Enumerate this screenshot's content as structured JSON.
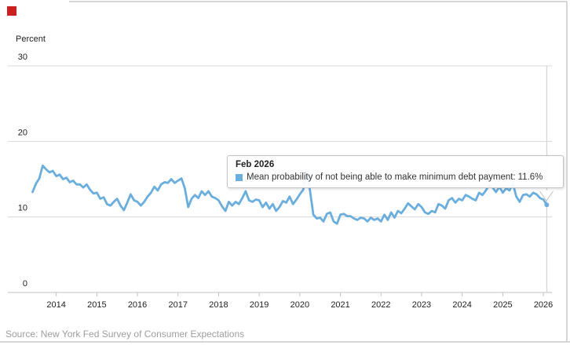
{
  "page": {
    "red_marker_color": "#cc1f1f",
    "source_text": "Source: New York Fed Survey of Consumer Expectations",
    "frame_color": "#c9c9c9"
  },
  "tooltip": {
    "title": "Feb 2026",
    "series_label": "Mean probability of not being able to make minimum debt payment:",
    "value": "11.6%",
    "marker_color": "#6aaede",
    "border_color": "#c3c3c3"
  },
  "chart_data": {
    "type": "line",
    "title": "",
    "ylabel": "Percent",
    "xlabel": "",
    "ylim": [
      0,
      30
    ],
    "yticks": [
      0,
      10,
      20,
      30
    ],
    "grid": "horizontal",
    "legend_position": "none",
    "frequency": "monthly",
    "x_start": "2013-06",
    "x_end": "2026-02",
    "xticks_years": [
      2014,
      2015,
      2016,
      2017,
      2018,
      2019,
      2020,
      2021,
      2022,
      2023,
      2024,
      2025,
      2026
    ],
    "crosshair_at": "2026-02",
    "colors": {
      "gridline": "#d8d8d8",
      "axis_line": "#c0c0c0",
      "tick": "#c0c0c0",
      "axis_label": "#222222",
      "crosshair": "#cccccc"
    },
    "series": [
      {
        "name": "Mean probability of not being able to make minimum debt payment",
        "color": "#6aaede",
        "last_point_label": "11.6%",
        "values": [
          13.3,
          14.4,
          15.1,
          16.8,
          16.3,
          15.9,
          16.1,
          15.4,
          15.6,
          15.0,
          15.2,
          14.6,
          14.8,
          14.3,
          14.3,
          13.9,
          14.3,
          13.6,
          13.1,
          13.2,
          12.4,
          12.6,
          11.7,
          11.5,
          12.0,
          12.4,
          11.5,
          10.9,
          11.9,
          13.0,
          12.2,
          12.0,
          11.5,
          12.0,
          12.7,
          13.2,
          14.0,
          13.5,
          14.3,
          14.6,
          14.5,
          15.0,
          14.5,
          14.8,
          15.1,
          13.8,
          11.3,
          12.4,
          12.9,
          12.5,
          13.4,
          12.9,
          13.4,
          12.7,
          12.5,
          12.2,
          11.4,
          10.8,
          12.0,
          11.5,
          12.0,
          11.7,
          12.5,
          13.4,
          12.2,
          12.0,
          12.3,
          12.2,
          11.3,
          11.9,
          11.1,
          11.7,
          10.8,
          11.3,
          12.1,
          11.9,
          12.7,
          11.7,
          12.3,
          13.0,
          13.6,
          16.2,
          13.5,
          10.3,
          9.8,
          9.9,
          9.4,
          10.4,
          10.6,
          9.4,
          9.1,
          10.3,
          10.4,
          10.1,
          10.1,
          9.8,
          9.6,
          9.9,
          9.8,
          9.4,
          9.9,
          9.6,
          9.8,
          9.4,
          10.3,
          9.6,
          10.6,
          9.9,
          10.8,
          10.5,
          11.1,
          11.8,
          11.4,
          11.0,
          11.7,
          11.3,
          10.6,
          10.4,
          10.8,
          10.6,
          11.7,
          11.5,
          11.1,
          12.2,
          12.5,
          11.9,
          12.4,
          12.2,
          12.9,
          12.7,
          12.4,
          12.2,
          13.2,
          12.9,
          13.5,
          14.2,
          13.9,
          13.3,
          14.0,
          13.2,
          13.8,
          13.5,
          14.4,
          12.7,
          12.0,
          12.9,
          13.0,
          12.7,
          13.2,
          13.0,
          12.5,
          12.3,
          11.6
        ]
      }
    ]
  }
}
